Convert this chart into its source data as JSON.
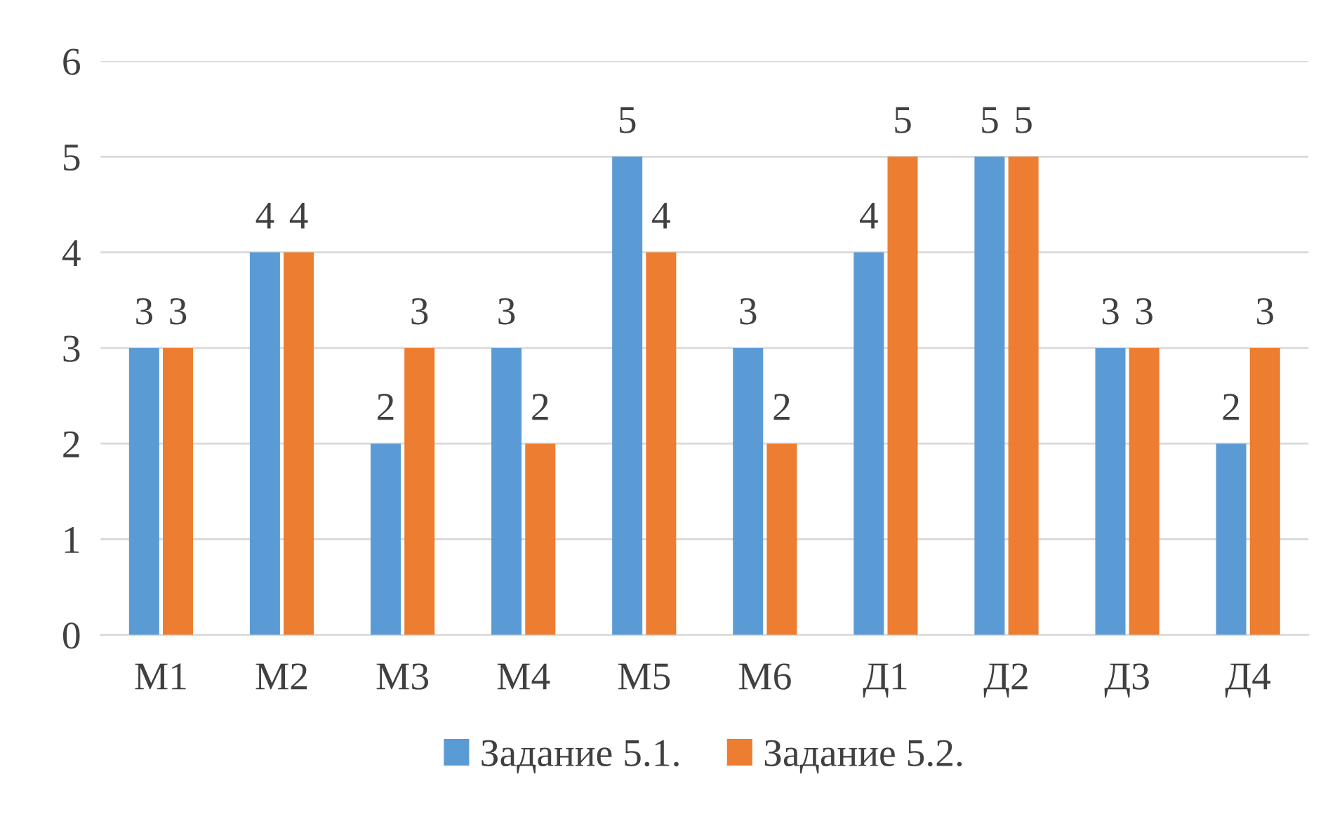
{
  "chart_data": {
    "type": "bar",
    "categories": [
      "М1",
      "М2",
      "М3",
      "М4",
      "М5",
      "М6",
      "Д1",
      "Д2",
      "Д3",
      "Д4"
    ],
    "series": [
      {
        "name": "Задание 5.1.",
        "color": "#5b9bd5",
        "values": [
          3,
          4,
          2,
          3,
          5,
          3,
          4,
          5,
          3,
          2
        ]
      },
      {
        "name": "Задание 5.2.",
        "color": "#ed7d31",
        "values": [
          3,
          4,
          3,
          2,
          4,
          2,
          5,
          5,
          3,
          3
        ]
      }
    ],
    "ylim": [
      0,
      6
    ],
    "yticks": [
      0,
      1,
      2,
      3,
      4,
      5,
      6
    ],
    "grid": "y",
    "legend": "bottom",
    "data_labels": true
  }
}
